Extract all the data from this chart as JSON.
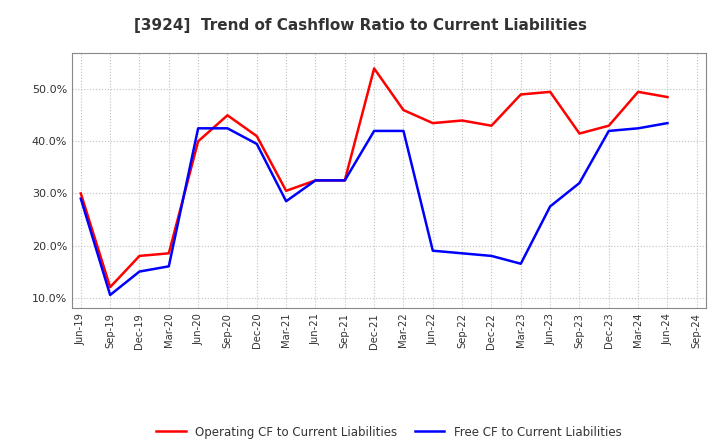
{
  "title": "[3924]  Trend of Cashflow Ratio to Current Liabilities",
  "x_labels": [
    "Jun-19",
    "Sep-19",
    "Dec-19",
    "Mar-20",
    "Jun-20",
    "Sep-20",
    "Dec-20",
    "Mar-21",
    "Jun-21",
    "Sep-21",
    "Dec-21",
    "Mar-22",
    "Jun-22",
    "Sep-22",
    "Dec-22",
    "Mar-23",
    "Jun-23",
    "Sep-23",
    "Dec-23",
    "Mar-24",
    "Jun-24",
    "Sep-24"
  ],
  "operating_cf": [
    30.0,
    12.0,
    18.0,
    18.5,
    40.0,
    45.0,
    41.0,
    30.5,
    32.5,
    32.5,
    54.0,
    46.0,
    43.5,
    44.0,
    43.0,
    49.0,
    49.5,
    41.5,
    43.0,
    49.5,
    48.5,
    null
  ],
  "free_cf": [
    29.0,
    10.5,
    15.0,
    16.0,
    42.5,
    42.5,
    39.5,
    28.5,
    32.5,
    32.5,
    42.0,
    42.0,
    19.0,
    18.5,
    18.0,
    16.5,
    27.5,
    32.0,
    42.0,
    42.5,
    43.5,
    null
  ],
  "operating_color": "#FF0000",
  "free_color": "#0000FF",
  "ylim": [
    8.0,
    57.0
  ],
  "yticks": [
    10.0,
    20.0,
    30.0,
    40.0,
    50.0
  ],
  "background_color": "#FFFFFF",
  "grid_color": "#BBBBBB",
  "title_color": "#333333",
  "tick_color": "#333333",
  "legend_labels": [
    "Operating CF to Current Liabilities",
    "Free CF to Current Liabilities"
  ]
}
